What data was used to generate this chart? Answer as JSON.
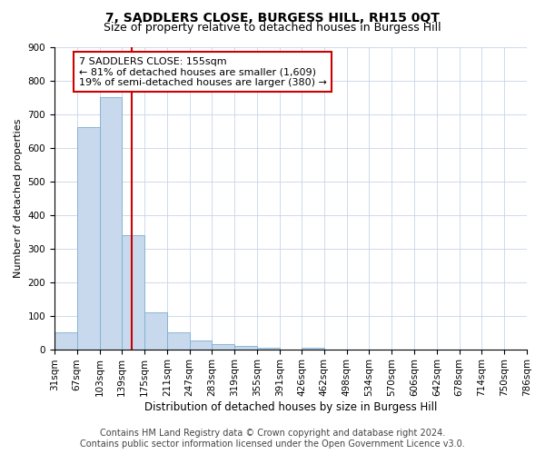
{
  "title": "7, SADDLERS CLOSE, BURGESS HILL, RH15 0QT",
  "subtitle": "Size of property relative to detached houses in Burgess Hill",
  "xlabel": "Distribution of detached houses by size in Burgess Hill",
  "ylabel": "Number of detached properties",
  "bin_edges": [
    31,
    67,
    103,
    139,
    175,
    211,
    247,
    283,
    319,
    355,
    391,
    426,
    462,
    498,
    534,
    570,
    606,
    642,
    678,
    714,
    750
  ],
  "bar_heights": [
    50,
    660,
    750,
    340,
    110,
    50,
    25,
    15,
    10,
    5,
    0,
    5,
    0,
    0,
    0,
    0,
    0,
    0,
    0,
    0
  ],
  "bar_color": "#c9d9ed",
  "bar_edgecolor": "#7aaed0",
  "grid_color": "#c8d4e8",
  "vline_x": 155,
  "vline_color": "#cc0000",
  "annotation_line1": "7 SADDLERS CLOSE: 155sqm",
  "annotation_line2": "← 81% of detached houses are smaller (1,609)",
  "annotation_line3": "19% of semi-detached houses are larger (380) →",
  "annotation_box_edgecolor": "#cc0000",
  "annotation_box_facecolor": "white",
  "ylim": [
    0,
    900
  ],
  "yticks": [
    0,
    100,
    200,
    300,
    400,
    500,
    600,
    700,
    800,
    900
  ],
  "footer_line1": "Contains HM Land Registry data © Crown copyright and database right 2024.",
  "footer_line2": "Contains public sector information licensed under the Open Government Licence v3.0.",
  "background_color": "white",
  "title_fontsize": 10,
  "subtitle_fontsize": 9,
  "xlabel_fontsize": 8.5,
  "ylabel_fontsize": 8,
  "tick_fontsize": 7.5,
  "footer_fontsize": 7,
  "annotation_fontsize": 8
}
